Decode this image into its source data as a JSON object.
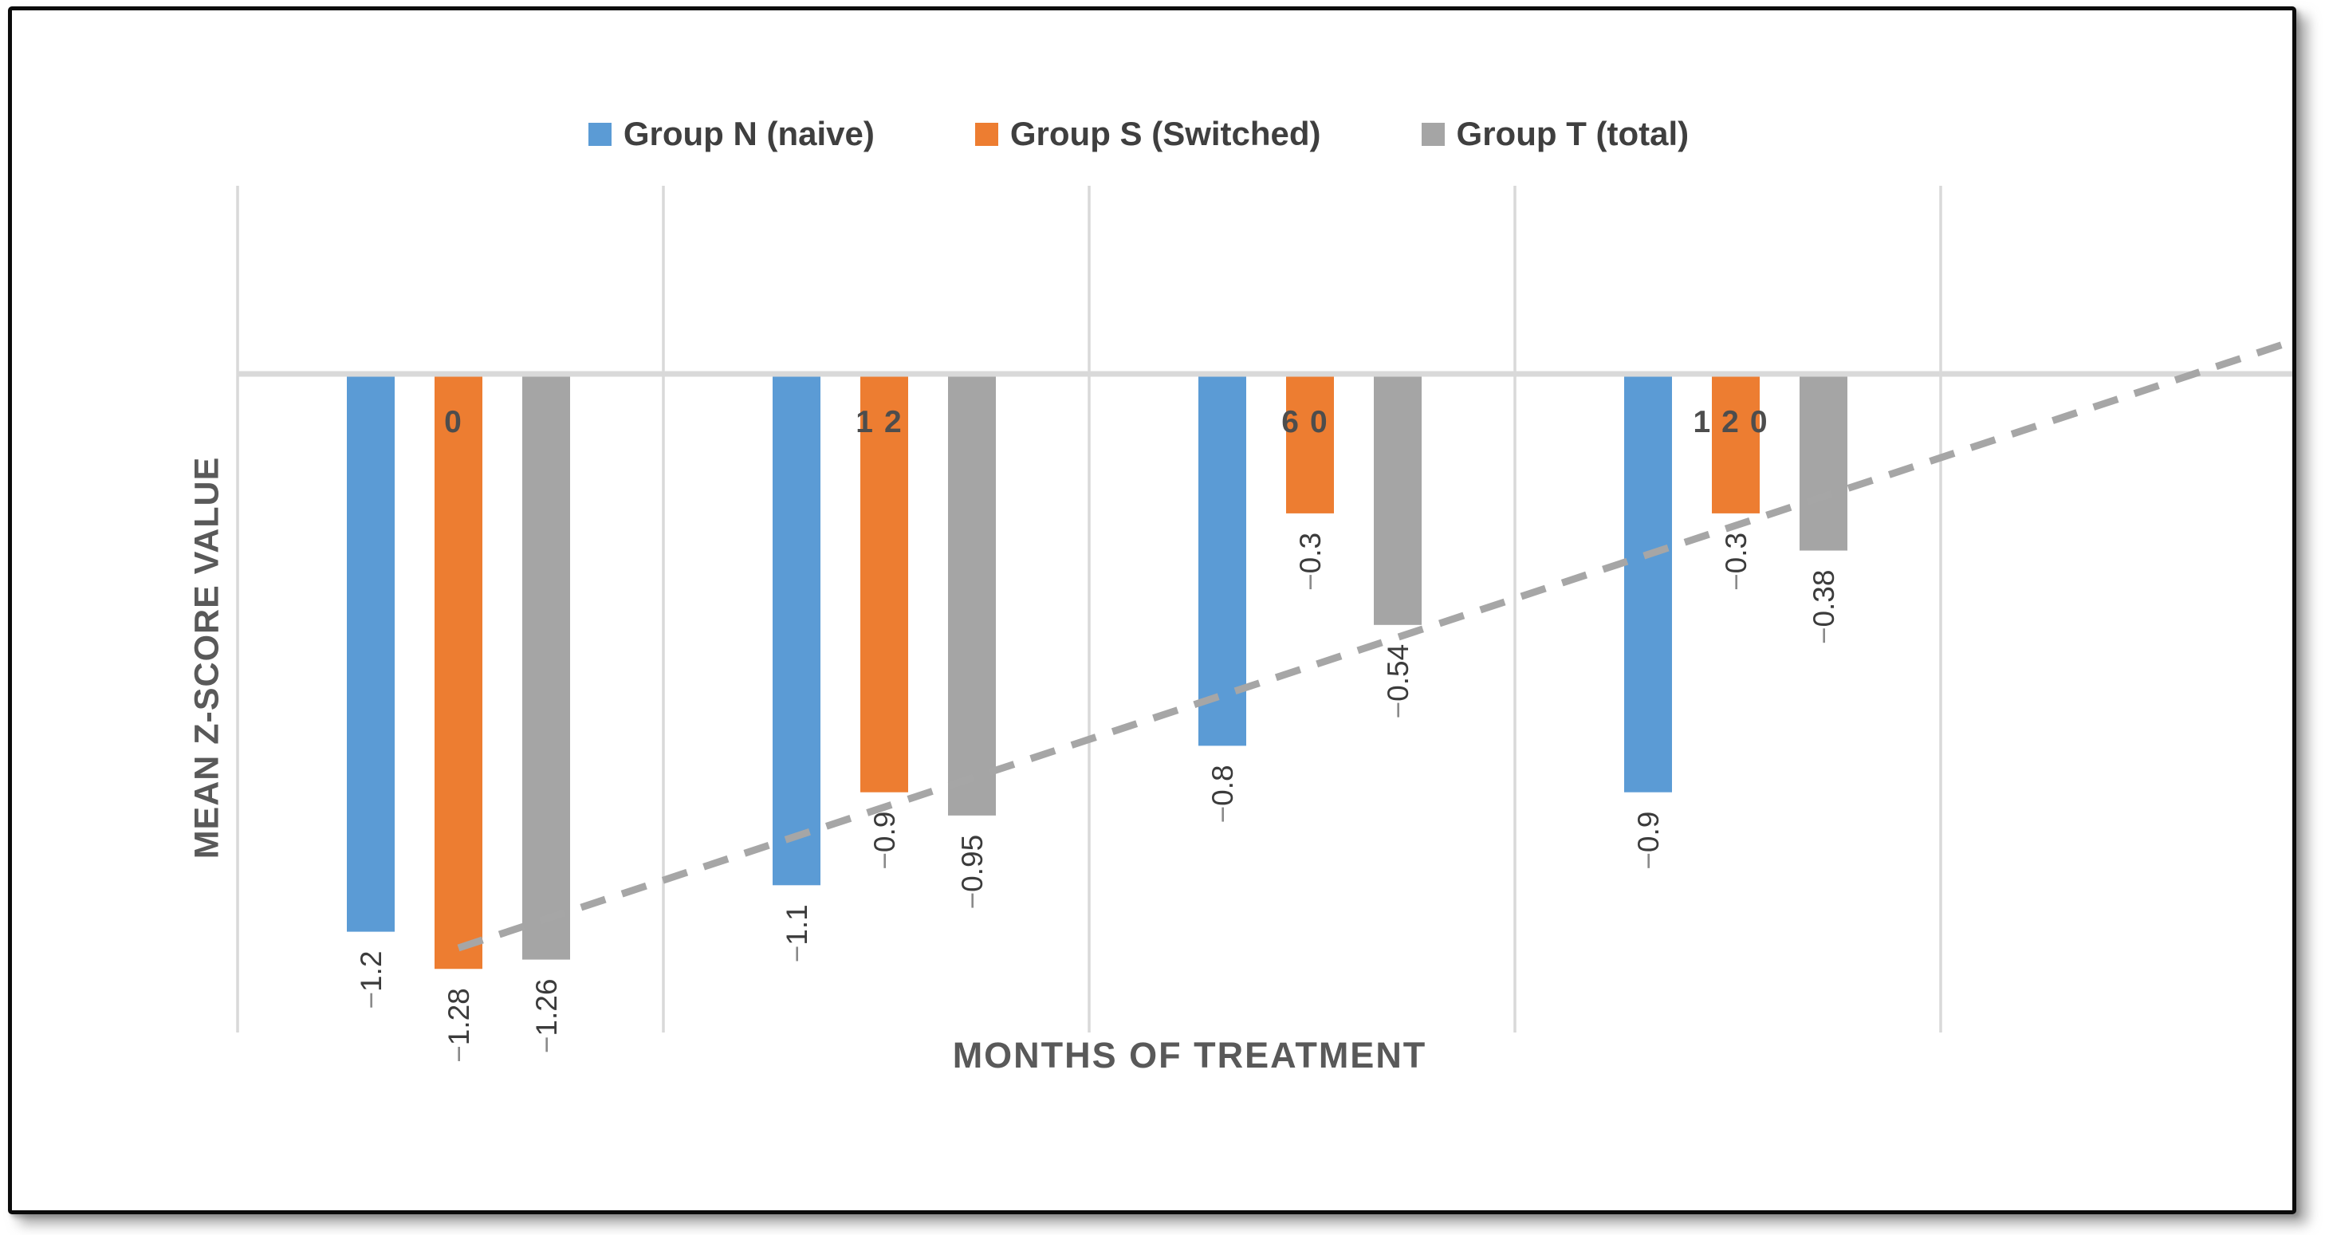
{
  "frame": {
    "background": "#FFFFFF",
    "border_color": "#0B0B0B"
  },
  "chart_data": {
    "type": "bar",
    "orientation": "vertical-negative",
    "title": "",
    "xlabel": "MONTHS OF TREATMENT",
    "ylabel": "MEAN Z-SCORE VALUE",
    "categories": [
      "0",
      "12",
      "60",
      "120"
    ],
    "series": [
      {
        "name": "Group N (naive)",
        "color": "#5B9BD5",
        "values": [
          -1.2,
          -1.1,
          -0.8,
          -0.9
        ],
        "data_labels": [
          "-1.2",
          "-1.1",
          "-0.8",
          "-0.9"
        ]
      },
      {
        "name": "Group S (Switched)",
        "color": "#ED7D31",
        "values": [
          -1.28,
          -0.9,
          -0.3,
          -0.3
        ],
        "data_labels": [
          "-1.28",
          "-0.9",
          "-0.3",
          "-0.3"
        ]
      },
      {
        "name": "Group T (total)",
        "color": "#A5A5A5",
        "values": [
          -1.26,
          -0.95,
          -0.54,
          -0.38
        ],
        "data_labels": [
          "-1.26",
          "-0.95",
          "-0.54",
          "-0.38"
        ]
      }
    ],
    "trendline": {
      "type": "linear",
      "style": "dashed",
      "color": "#A6A6A6",
      "start_value": -1.235,
      "end_value": 0.07
    },
    "ylim": [
      -1.42,
      0.4
    ],
    "value_axis_tick_labels": [],
    "grid": "vertical-category-separators",
    "gridline_color": "#D9D9D9",
    "legend_position": "top"
  },
  "styles": {
    "data_label_color": "#3B3B3B",
    "data_label_minus_color": "#8A8A8A",
    "category_label_color": "#4D4D4D",
    "axis_title_color": "#595959",
    "legend_text_color": "#3F3F3F",
    "zero_line_color": "#D9D9D9"
  }
}
